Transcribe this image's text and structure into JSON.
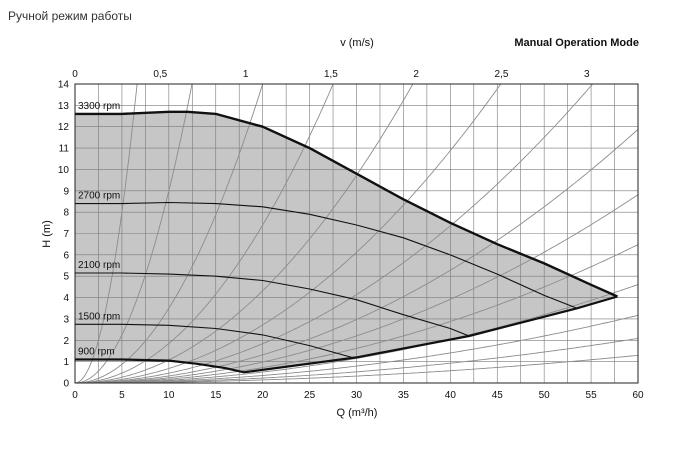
{
  "page": {
    "caption": "Ручной режим работы"
  },
  "chart_data": {
    "type": "line",
    "title": "Manual Operation Mode",
    "xlabel": "Q (m³/h)",
    "ylabel": "H (m)",
    "top_axis_label": "v (m/s)",
    "xlim": [
      0,
      60
    ],
    "ylim": [
      0,
      14
    ],
    "top_axis_lim": [
      0,
      3.3
    ],
    "x_ticks": [
      "0",
      "5",
      "10",
      "15",
      "20",
      "25",
      "30",
      "35",
      "40",
      "45",
      "50",
      "55",
      "60"
    ],
    "y_ticks": [
      "0",
      "1",
      "2",
      "3",
      "4",
      "5",
      "6",
      "7",
      "8",
      "9",
      "10",
      "11",
      "12",
      "13",
      "14"
    ],
    "top_ticks": [
      "0",
      "0,5",
      "1",
      "1,5",
      "2",
      "2,5",
      "3"
    ],
    "grid": true,
    "series": [
      {
        "name": "3300 rpm",
        "x": [
          0,
          5,
          10,
          12,
          15,
          20,
          25,
          30,
          35,
          40,
          45,
          50,
          55,
          57.8
        ],
        "y": [
          12.6,
          12.6,
          12.7,
          12.7,
          12.6,
          12.0,
          11.0,
          9.8,
          8.6,
          7.5,
          6.5,
          5.6,
          4.6,
          4.05
        ]
      },
      {
        "name": "2700 rpm",
        "x": [
          0,
          5,
          10,
          15,
          20,
          25,
          30,
          35,
          40,
          45,
          50,
          53.5
        ],
        "y": [
          8.4,
          8.4,
          8.45,
          8.4,
          8.25,
          7.9,
          7.4,
          6.8,
          6.0,
          5.1,
          4.1,
          3.5
        ]
      },
      {
        "name": "2100 rpm",
        "x": [
          0,
          5,
          10,
          15,
          20,
          25,
          30,
          35,
          40,
          42
        ],
        "y": [
          5.15,
          5.15,
          5.1,
          5.0,
          4.8,
          4.4,
          3.9,
          3.2,
          2.55,
          2.2
        ]
      },
      {
        "name": "1500 rpm",
        "x": [
          0,
          5,
          10,
          15,
          20,
          25,
          29.5
        ],
        "y": [
          2.75,
          2.75,
          2.7,
          2.55,
          2.25,
          1.75,
          1.2
        ]
      },
      {
        "name": "900 rpm",
        "x": [
          0,
          5,
          10,
          13,
          16,
          18
        ],
        "y": [
          1.1,
          1.1,
          1.05,
          0.9,
          0.7,
          0.5
        ]
      }
    ],
    "envelope_lower": {
      "x": [
        18,
        30,
        42,
        53.5,
        57.8
      ],
      "y": [
        0.5,
        1.2,
        2.2,
        3.5,
        4.05
      ]
    },
    "system_curve_k": [
      0.32,
      0.09,
      0.035,
      0.0185,
      0.0108,
      0.0068,
      0.0046,
      0.0033,
      0.00245,
      0.0018,
      0.00128,
      0.00088,
      0.00058,
      0.00036
    ]
  }
}
